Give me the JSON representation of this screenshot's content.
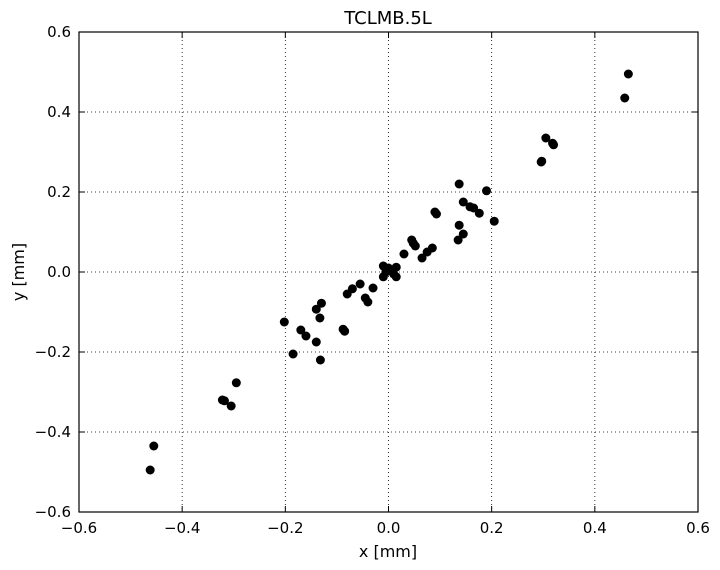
{
  "chart_data": {
    "type": "scatter",
    "title": "TCLMB.5L",
    "xlabel": "x [mm]",
    "ylabel": "y [mm]",
    "xlim": [
      -0.6,
      0.6
    ],
    "ylim": [
      -0.6,
      0.6
    ],
    "xticks": [
      -0.6,
      -0.4,
      -0.2,
      0.0,
      0.2,
      0.4,
      0.6
    ],
    "yticks": [
      -0.6,
      -0.4,
      -0.2,
      0.0,
      0.2,
      0.4,
      0.6
    ],
    "xtick_labels": [
      "−0.6",
      "−0.4",
      "−0.2",
      "0.0",
      "0.2",
      "0.4",
      "0.6"
    ],
    "ytick_labels": [
      "−0.6",
      "−0.4",
      "−0.2",
      "0.0",
      "0.2",
      "0.4",
      "0.6"
    ],
    "grid": true,
    "marker_color": "#000000",
    "points": [
      {
        "x": 0.465,
        "y": 0.495
      },
      {
        "x": 0.458,
        "y": 0.435
      },
      {
        "x": 0.305,
        "y": 0.335
      },
      {
        "x": 0.318,
        "y": 0.322
      },
      {
        "x": 0.32,
        "y": 0.318
      },
      {
        "x": 0.297,
        "y": 0.277
      },
      {
        "x": 0.296,
        "y": 0.275
      },
      {
        "x": 0.137,
        "y": 0.22
      },
      {
        "x": 0.19,
        "y": 0.203
      },
      {
        "x": 0.145,
        "y": 0.175
      },
      {
        "x": 0.158,
        "y": 0.163
      },
      {
        "x": 0.165,
        "y": 0.16
      },
      {
        "x": 0.176,
        "y": 0.147
      },
      {
        "x": 0.09,
        "y": 0.15
      },
      {
        "x": 0.093,
        "y": 0.145
      },
      {
        "x": 0.205,
        "y": 0.127
      },
      {
        "x": 0.137,
        "y": 0.117
      },
      {
        "x": 0.145,
        "y": 0.095
      },
      {
        "x": 0.135,
        "y": 0.08
      },
      {
        "x": 0.045,
        "y": 0.08
      },
      {
        "x": 0.048,
        "y": 0.072
      },
      {
        "x": 0.052,
        "y": 0.065
      },
      {
        "x": 0.085,
        "y": 0.06
      },
      {
        "x": 0.075,
        "y": 0.05
      },
      {
        "x": 0.03,
        "y": 0.045
      },
      {
        "x": 0.065,
        "y": 0.035
      },
      {
        "x": -0.01,
        "y": 0.015
      },
      {
        "x": 0.0,
        "y": 0.01
      },
      {
        "x": 0.015,
        "y": 0.012
      },
      {
        "x": 0.005,
        "y": 0.005
      },
      {
        "x": -0.005,
        "y": 0.0
      },
      {
        "x": 0.01,
        "y": -0.005
      },
      {
        "x": -0.01,
        "y": -0.012
      },
      {
        "x": 0.015,
        "y": -0.012
      },
      {
        "x": -0.03,
        "y": -0.04
      },
      {
        "x": -0.055,
        "y": -0.03
      },
      {
        "x": -0.07,
        "y": -0.042
      },
      {
        "x": -0.08,
        "y": -0.055
      },
      {
        "x": -0.045,
        "y": -0.065
      },
      {
        "x": -0.04,
        "y": -0.075
      },
      {
        "x": -0.13,
        "y": -0.078
      },
      {
        "x": -0.14,
        "y": -0.093
      },
      {
        "x": -0.133,
        "y": -0.115
      },
      {
        "x": -0.202,
        "y": -0.125
      },
      {
        "x": -0.17,
        "y": -0.145
      },
      {
        "x": -0.088,
        "y": -0.143
      },
      {
        "x": -0.085,
        "y": -0.148
      },
      {
        "x": -0.16,
        "y": -0.16
      },
      {
        "x": -0.14,
        "y": -0.175
      },
      {
        "x": -0.185,
        "y": -0.205
      },
      {
        "x": -0.132,
        "y": -0.22
      },
      {
        "x": -0.295,
        "y": -0.277
      },
      {
        "x": -0.322,
        "y": -0.32
      },
      {
        "x": -0.318,
        "y": -0.322
      },
      {
        "x": -0.305,
        "y": -0.335
      },
      {
        "x": -0.455,
        "y": -0.435
      },
      {
        "x": -0.462,
        "y": -0.495
      }
    ]
  }
}
